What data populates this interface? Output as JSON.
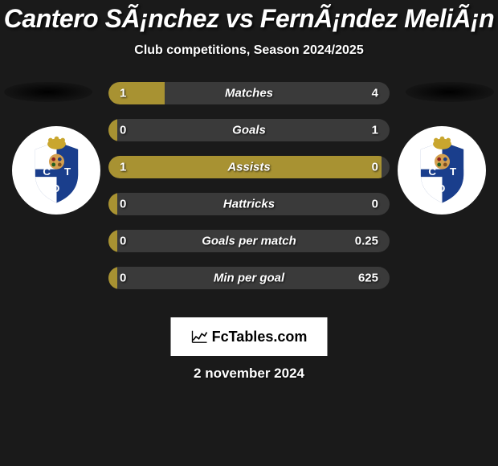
{
  "title": "Cantero SÃ¡nchez vs FernÃ¡ndez MeliÃ¡n",
  "subtitle": "Club competitions, Season 2024/2025",
  "date": "2 november 2024",
  "logo_text": "FcTables.com",
  "colors": {
    "background": "#1a1a1a",
    "bar_left": "#a89232",
    "bar_right": "#3a3a3a",
    "text": "#ffffff"
  },
  "crest": {
    "outer_bg": "#ffffff",
    "shield_blue": "#1a3e8c",
    "shield_white": "#ffffff",
    "crown": "#c9a62e",
    "letters": "#ffffff"
  },
  "bars": [
    {
      "label": "Matches",
      "left_val": "1",
      "right_val": "4",
      "left_pct": 20,
      "right_pct": 80
    },
    {
      "label": "Goals",
      "left_val": "0",
      "right_val": "1",
      "left_pct": 3,
      "right_pct": 97
    },
    {
      "label": "Assists",
      "left_val": "1",
      "right_val": "0",
      "left_pct": 97,
      "right_pct": 3
    },
    {
      "label": "Hattricks",
      "left_val": "0",
      "right_val": "0",
      "left_pct": 3,
      "right_pct": 3
    },
    {
      "label": "Goals per match",
      "left_val": "0",
      "right_val": "0.25",
      "left_pct": 3,
      "right_pct": 97
    },
    {
      "label": "Min per goal",
      "left_val": "0",
      "right_val": "625",
      "left_pct": 3,
      "right_pct": 97
    }
  ]
}
